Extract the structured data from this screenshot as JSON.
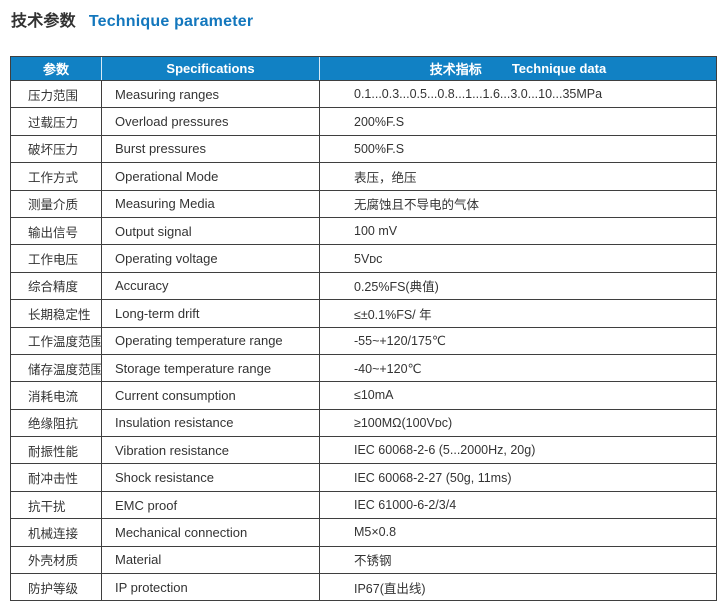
{
  "title": {
    "cn": "技术参数",
    "en": "Technique parameter"
  },
  "colors": {
    "header_bg": "#1181c4",
    "title_blue": "#1377bd",
    "border": "#3f3f3f",
    "text": "#333333"
  },
  "table": {
    "header": {
      "col1": "参数",
      "col2": "Specifications",
      "col3_cn": "技术指标",
      "col3_en": "Technique data"
    },
    "rows": [
      {
        "cn": "压力范围",
        "en": "Measuring ranges",
        "value": "0.1...0.3...0.5...0.8...1...1.6...3.0...10...35MPa"
      },
      {
        "cn": "过载压力",
        "en": "Overload pressures",
        "value": "200%F.S"
      },
      {
        "cn": "破坏压力",
        "en": "Burst pressures",
        "value": "500%F.S"
      },
      {
        "cn": "工作方式",
        "en": "Operational Mode",
        "value": "表压，绝压"
      },
      {
        "cn": "测量介质",
        "en": "Measuring Media",
        "value": "无腐蚀且不导电的气体"
      },
      {
        "cn": "输出信号",
        "en": "Output signal",
        "value": "100 mV"
      },
      {
        "cn": "工作电压",
        "en": "Operating voltage",
        "value": "5Vᴅᴄ"
      },
      {
        "cn": "综合精度",
        "en": "Accuracy",
        "value": "0.25%FS(典值)"
      },
      {
        "cn": "长期稳定性",
        "en": "Long-term drift",
        "value": "≤±0.1%FS/ 年"
      },
      {
        "cn": "工作温度范围",
        "en": "Operating temperature range",
        "value": "-55~+120/175℃"
      },
      {
        "cn": "储存温度范围",
        "en": "Storage temperature range",
        "value": "-40~+120℃"
      },
      {
        "cn": "消耗电流",
        "en": "Current consumption",
        "value": "≤10mA"
      },
      {
        "cn": "绝缘阻抗",
        "en": "Insulation resistance",
        "value": "≥100MΩ(100Vᴅᴄ)"
      },
      {
        "cn": "耐振性能",
        "en": "Vibration resistance",
        "value": "IEC 60068-2-6 (5...2000Hz, 20g)"
      },
      {
        "cn": "耐冲击性",
        "en": "Shock resistance",
        "value": "IEC 60068-2-27 (50g, 11ms)"
      },
      {
        "cn": "抗干扰",
        "en": "EMC proof",
        "value": "IEC 61000-6-2/3/4"
      },
      {
        "cn": "机械连接",
        "en": "Mechanical connection",
        "value": "M5×0.8"
      },
      {
        "cn": "外壳材质",
        "en": "Material",
        "value": "不锈钢"
      },
      {
        "cn": "防护等级",
        "en": "IP protection",
        "value": "IP67(直出线)"
      }
    ]
  }
}
